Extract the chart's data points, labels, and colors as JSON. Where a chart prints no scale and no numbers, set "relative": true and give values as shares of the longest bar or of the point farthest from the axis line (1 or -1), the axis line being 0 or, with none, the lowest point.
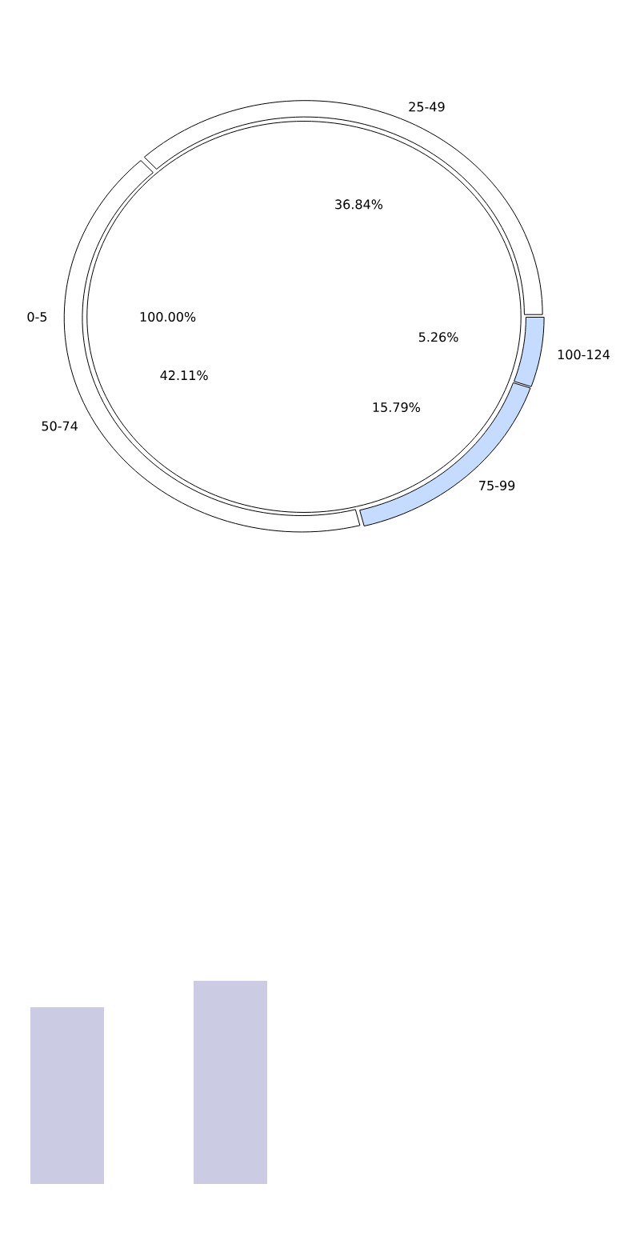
{
  "chart_data": [
    {
      "type": "pie",
      "categories": [
        "0-5"
      ],
      "values": [
        100
      ],
      "colors": [
        "#ffffff"
      ],
      "value_labels": [
        "100.00%"
      ]
    },
    {
      "type": "donut",
      "categories": [
        "25-49",
        "50-74",
        "75-99",
        "100-124"
      ],
      "values": [
        36.84,
        42.11,
        15.79,
        5.26
      ],
      "colors": [
        "#ffffff",
        "#ffffff",
        "#c5dbff",
        "#c5dbff"
      ],
      "value_labels": [
        "36.84%",
        "42.11%",
        "15.79%",
        "5.26%"
      ]
    },
    {
      "type": "bar",
      "relative": true,
      "categories": [
        null,
        null
      ],
      "values": [
        0.87,
        1
      ],
      "color": "#cbcbe3"
    }
  ]
}
